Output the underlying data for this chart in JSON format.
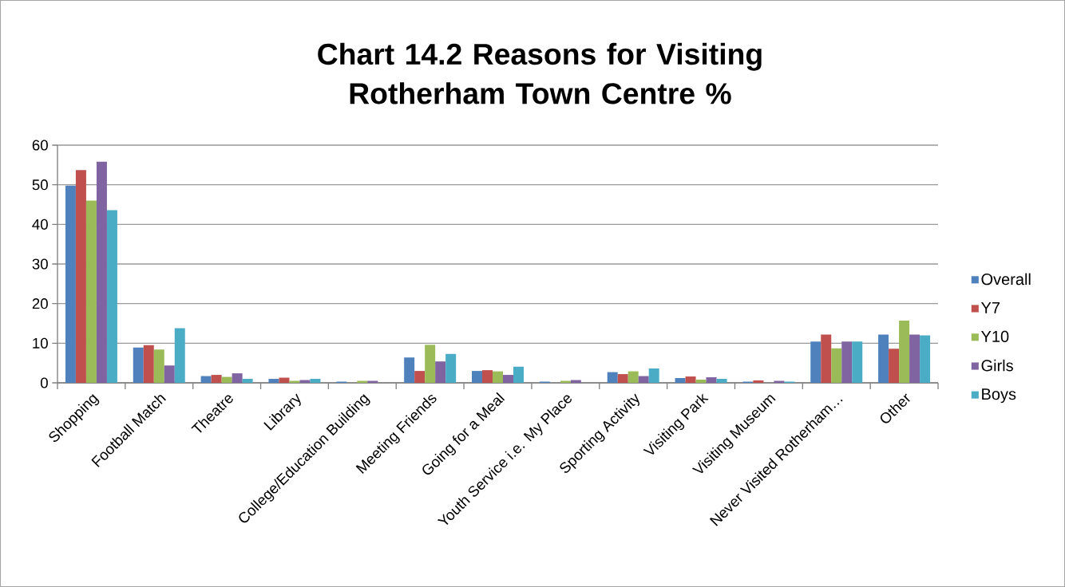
{
  "chart_data": {
    "type": "bar",
    "title": "Chart 14.2 Reasons for Visiting Rotherham Town Centre %",
    "categories": [
      "Shopping",
      "Football Match",
      "Theatre",
      "Library",
      "College/Education Building",
      "Meeting Friends",
      "Going for a Meal",
      "Youth Service i.e. My Place",
      "Sporting Activity",
      "Visiting Park",
      "Visiting Museum",
      "Never Visited Rotherham…",
      "Other"
    ],
    "series": [
      {
        "name": "Overall",
        "color": "#4f81bd",
        "values": [
          49.8,
          8.9,
          1.7,
          1.0,
          0.3,
          6.4,
          3.0,
          0.3,
          2.7,
          1.2,
          0.3,
          10.4,
          12.2
        ]
      },
      {
        "name": "Y7",
        "color": "#c0504d",
        "values": [
          53.7,
          9.5,
          2.0,
          1.3,
          null,
          3.0,
          3.2,
          0.0,
          2.2,
          1.6,
          0.6,
          12.2,
          8.6
        ]
      },
      {
        "name": "Y10",
        "color": "#9bbb59",
        "values": [
          46.0,
          8.4,
          1.5,
          0.5,
          0.5,
          9.6,
          2.9,
          0.5,
          2.9,
          0.8,
          null,
          8.7,
          15.7
        ]
      },
      {
        "name": "Girls",
        "color": "#8064a2",
        "values": [
          55.8,
          4.4,
          2.4,
          0.7,
          0.5,
          5.4,
          2.0,
          0.7,
          1.7,
          1.4,
          0.5,
          10.4,
          12.2
        ]
      },
      {
        "name": "Boys",
        "color": "#4bacc6",
        "values": [
          43.6,
          13.8,
          1.0,
          1.0,
          null,
          7.3,
          4.1,
          0.0,
          3.6,
          1.0,
          0.3,
          10.4,
          12.0
        ]
      }
    ],
    "ylim": [
      0,
      60
    ],
    "yticks": [
      0,
      10,
      20,
      30,
      40,
      50,
      60
    ],
    "grid": "y",
    "legend": "right"
  }
}
